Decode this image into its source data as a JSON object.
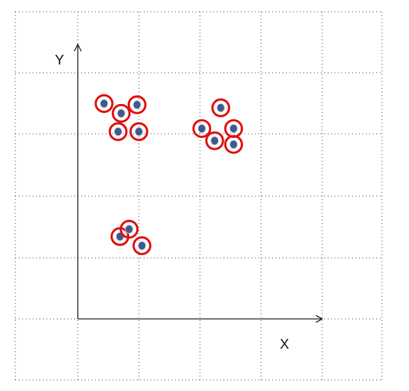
{
  "chart_data": {
    "type": "scatter",
    "title": "",
    "xlabel": "X",
    "ylabel": "Y",
    "xlim": [
      0,
      4
    ],
    "ylim": [
      0,
      4
    ],
    "grid": true,
    "legend": "none",
    "colors": {
      "point_fill": "#3f5a8a",
      "point_edge": "#c8d0df",
      "ring": "#e01010",
      "axis": "#111111",
      "grid": "#222222"
    },
    "series": [
      {
        "points": [
          {
            "x": 0.43,
            "y": 3.53
          },
          {
            "x": 0.71,
            "y": 3.37
          },
          {
            "x": 0.97,
            "y": 3.51
          },
          {
            "x": 0.66,
            "y": 3.07
          },
          {
            "x": 1.0,
            "y": 3.07
          },
          {
            "x": 2.34,
            "y": 3.46
          },
          {
            "x": 2.03,
            "y": 3.12
          },
          {
            "x": 2.55,
            "y": 3.12
          },
          {
            "x": 2.24,
            "y": 2.92
          },
          {
            "x": 2.55,
            "y": 2.86
          },
          {
            "x": 0.69,
            "y": 1.35
          },
          {
            "x": 0.84,
            "y": 1.47
          },
          {
            "x": 1.05,
            "y": 1.2
          }
        ]
      }
    ]
  }
}
